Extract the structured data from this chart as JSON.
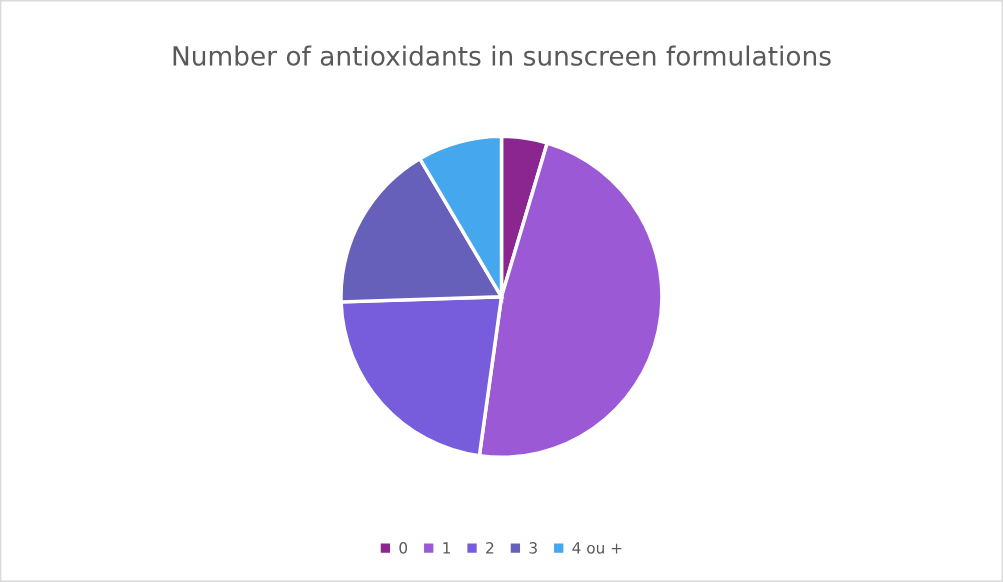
{
  "chart_data": {
    "type": "pie",
    "title": "Number of antioxidants in sunscreen formulations",
    "categories": [
      "0",
      "1",
      "2",
      "3",
      "4 ou +"
    ],
    "values": [
      4.6,
      47.6,
      22.3,
      17.0,
      8.5
    ],
    "colors": [
      "#8b2590",
      "#9b59d6",
      "#775cdc",
      "#6760ba",
      "#45a7ee"
    ],
    "legend": "bottom"
  }
}
